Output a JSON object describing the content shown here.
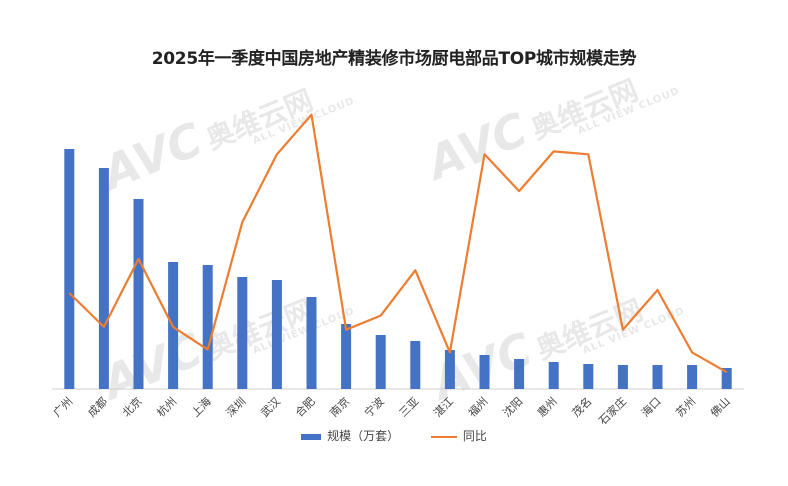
{
  "chart_data": {
    "type": "bar",
    "title": "2025年一季度中国房地产精装修市场厨电部品TOP城市规模走势",
    "categories": [
      "广州",
      "成都",
      "北京",
      "杭州",
      "上海",
      "深圳",
      "武汉",
      "合肥",
      "南京",
      "宁波",
      "三亚",
      "湛江",
      "福州",
      "沈阳",
      "惠州",
      "茂名",
      "石家庄",
      "海口",
      "苏州",
      "佛山"
    ],
    "series": [
      {
        "name": "规模（万套）",
        "type": "bar",
        "color": "#4472C4",
        "values": [
          2.4,
          2.21,
          1.9,
          1.27,
          1.24,
          1.12,
          1.09,
          0.92,
          0.65,
          0.54,
          0.48,
          0.39,
          0.34,
          0.3,
          0.27,
          0.25,
          0.24,
          0.24,
          0.24,
          0.21
        ]
      },
      {
        "name": "同比",
        "type": "line",
        "color": "#ED7D31",
        "values": [
          35,
          23,
          47,
          23,
          15,
          60,
          84,
          98,
          22,
          27,
          43,
          14,
          84,
          71,
          85,
          84,
          22,
          36,
          14,
          7
        ]
      }
    ],
    "legend_position": "bottom",
    "grid": false
  },
  "watermark": {
    "logo": "AVC",
    "cn": "奥维云网",
    "en": "ALL VIEW CLOUD"
  }
}
